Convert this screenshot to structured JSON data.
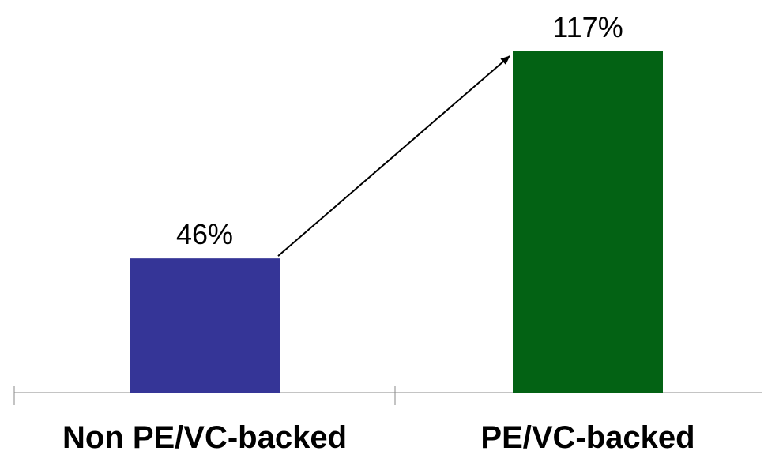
{
  "chart_data": {
    "type": "bar",
    "categories": [
      "Non PE/VC-backed",
      "PE/VC-backed"
    ],
    "values": [
      46,
      117
    ],
    "value_labels": [
      "46%",
      "117%"
    ],
    "colors": [
      "#353597",
      "#036214"
    ],
    "title": "",
    "xlabel": "",
    "ylabel": "",
    "ylim": [
      0,
      117
    ],
    "grid": false,
    "legend": "none",
    "annotations": [
      "arrow from Non PE/VC-backed bar top to PE/VC-backed bar top"
    ]
  }
}
